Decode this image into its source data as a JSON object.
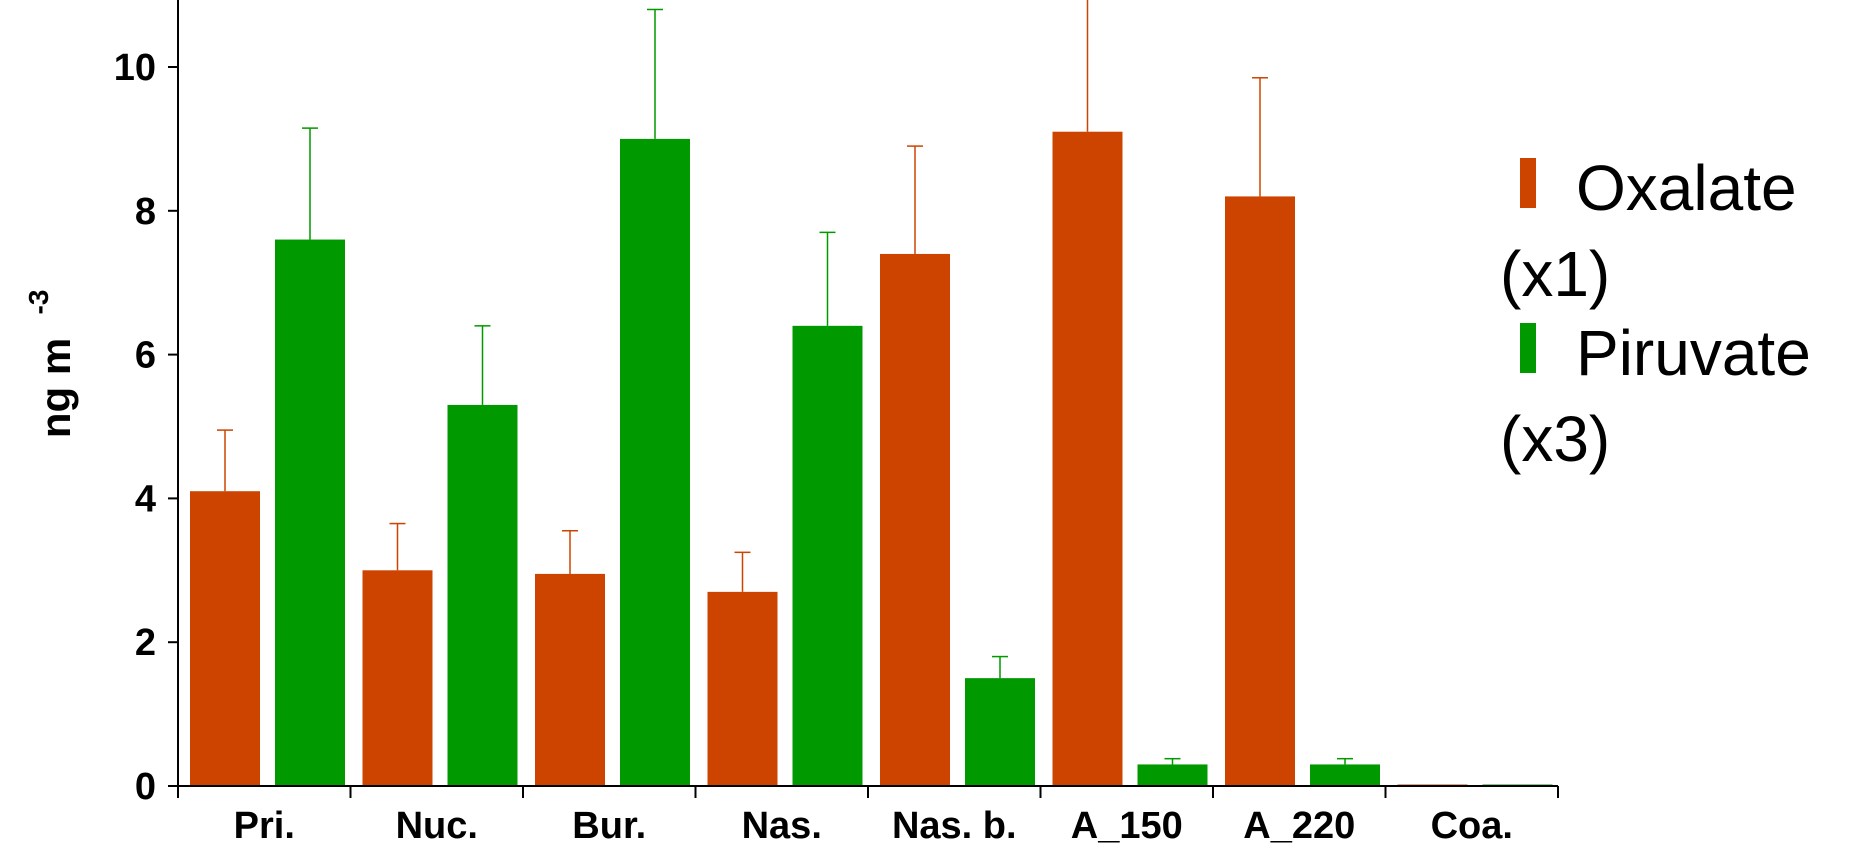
{
  "chart_data": {
    "type": "bar",
    "ylabel": "ng m",
    "ylabel_superscript": "-3",
    "ylim": [
      0,
      11
    ],
    "yticks": [
      0,
      2,
      4,
      6,
      8,
      10
    ],
    "grid": false,
    "legend_position": "right",
    "categories": [
      "Pri.",
      "Nuc.",
      "Bur.",
      "Nas.",
      "Nas. b.",
      "A_150",
      "A_220",
      "Coa."
    ],
    "series": [
      {
        "name": "Oxalate (x1)",
        "color": "#CC4400",
        "values": [
          4.1,
          3.0,
          2.95,
          2.7,
          7.4,
          9.1,
          8.2,
          0.0
        ],
        "error": [
          0.85,
          0.65,
          0.6,
          0.55,
          1.5,
          1.85,
          1.65,
          0.0
        ]
      },
      {
        "name": "Piruvate (x3)",
        "color": "#009900",
        "values": [
          7.6,
          5.3,
          9.0,
          6.4,
          1.5,
          0.3,
          0.3,
          0.0
        ],
        "error": [
          1.55,
          1.1,
          1.8,
          1.3,
          0.3,
          0.08,
          0.08,
          0.0
        ]
      }
    ],
    "legend": {
      "entries": [
        {
          "line1": "Oxalate",
          "line2": "(x1)",
          "color": "#CC4400"
        },
        {
          "line1": "Piruvate",
          "line2": "(x3)",
          "color": "#009900"
        }
      ]
    }
  }
}
